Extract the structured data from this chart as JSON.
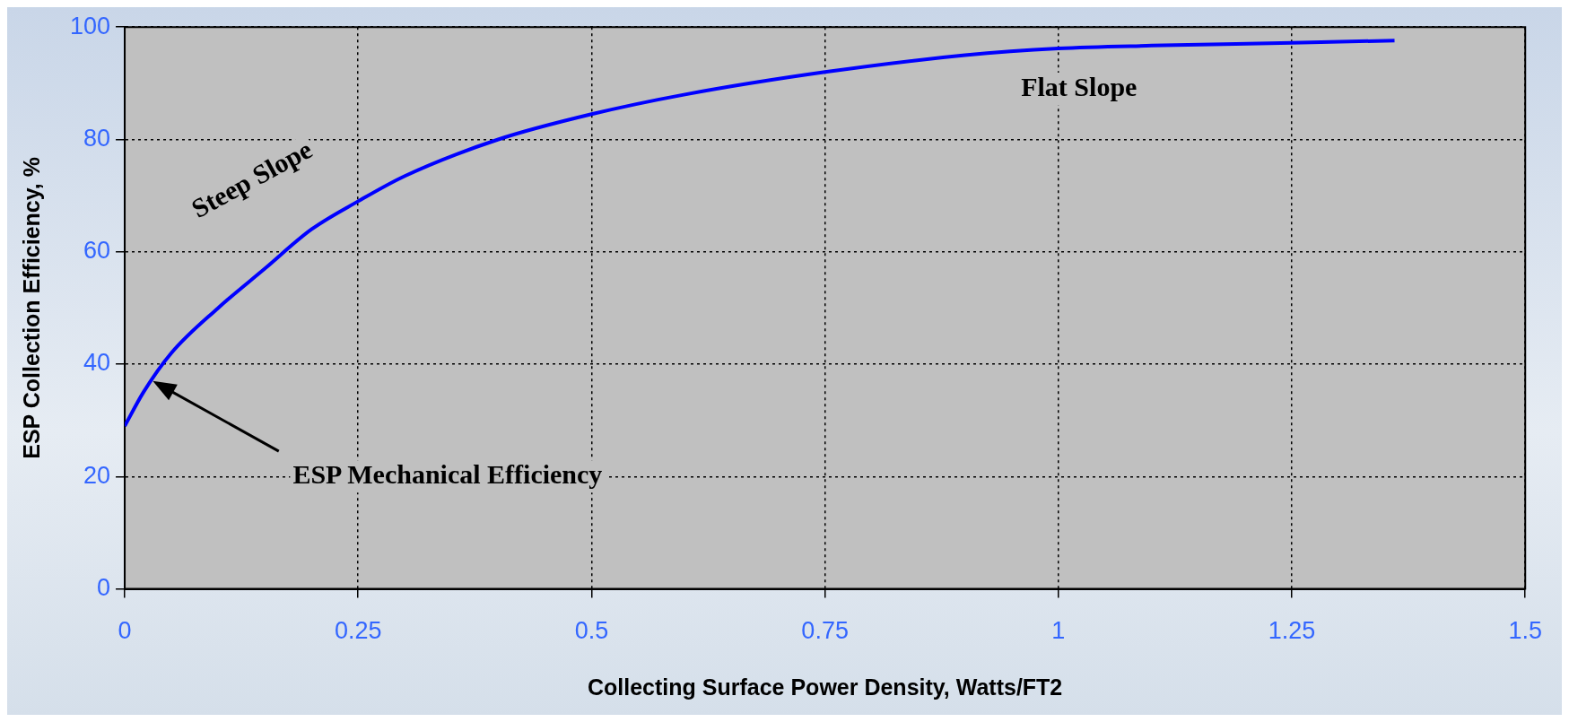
{
  "chart_data": {
    "type": "line",
    "xlabel": "Collecting Surface Power Density, Watts/FT2",
    "ylabel": "ESP Collection Efficiency, %",
    "x": [
      0,
      0.02,
      0.05,
      0.1,
      0.15,
      0.2,
      0.25,
      0.3,
      0.4,
      0.5,
      0.6,
      0.75,
      0.9,
      1.0,
      1.1,
      1.25,
      1.36
    ],
    "series": [
      {
        "color": "#0000ff",
        "values": [
          29,
          35,
          42,
          50,
          57,
          64,
          69,
          73.5,
          80,
          84.5,
          88,
          92,
          95,
          96.2,
          96.7,
          97.2,
          97.6
        ]
      }
    ],
    "xlim": [
      0,
      1.5
    ],
    "xticks": [
      0,
      0.25,
      0.5,
      0.75,
      1,
      1.25,
      1.5
    ],
    "ylim": [
      0,
      100
    ],
    "yticks": [
      0,
      20,
      40,
      60,
      80,
      100
    ],
    "grid": true,
    "legend": false,
    "marker": "none",
    "line_style": "solid",
    "annotations": [
      "Steep Slope",
      "Flat Slope",
      "ESP Mechanical Efficiency"
    ]
  }
}
